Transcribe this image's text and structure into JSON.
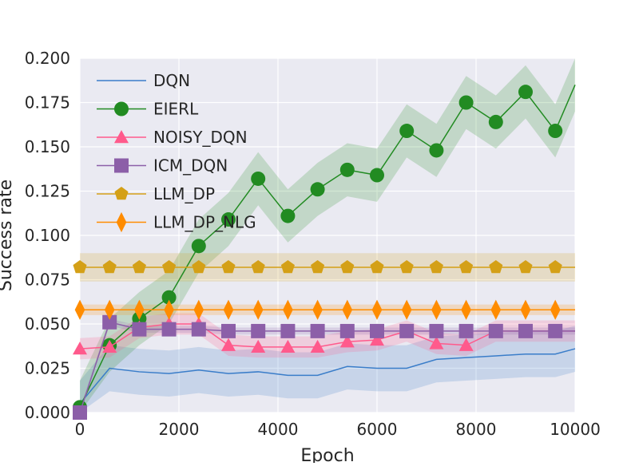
{
  "chart_data": {
    "type": "line",
    "xlabel": "Epoch",
    "ylabel": "Success rate",
    "xlim": [
      0,
      10000
    ],
    "ylim": [
      0,
      0.2
    ],
    "xticks": [
      "0",
      "2000",
      "4000",
      "6000",
      "8000",
      "10000"
    ],
    "yticks": [
      "0.000",
      "0.025",
      "0.050",
      "0.075",
      "0.100",
      "0.125",
      "0.150",
      "0.175",
      "0.200"
    ],
    "grid": true,
    "legend": "top-left",
    "x": [
      0,
      600,
      1200,
      1800,
      2400,
      3000,
      3600,
      4200,
      4800,
      5400,
      6000,
      6600,
      7200,
      7800,
      8400,
      9000,
      9600,
      10000
    ],
    "series": [
      {
        "name": "DQN",
        "color": "#3a7dc9",
        "marker": "none",
        "values": [
          0.005,
          0.025,
          0.023,
          0.022,
          0.024,
          0.022,
          0.023,
          0.021,
          0.021,
          0.026,
          0.025,
          0.025,
          0.03,
          0.031,
          0.032,
          0.033,
          0.033,
          0.036
        ],
        "band": 0.013
      },
      {
        "name": "EIERL",
        "color": "#228b22",
        "marker": "circle",
        "values": [
          0.003,
          0.038,
          0.053,
          0.065,
          0.094,
          0.109,
          0.132,
          0.111,
          0.126,
          0.137,
          0.134,
          0.159,
          0.148,
          0.175,
          0.164,
          0.181,
          0.159,
          0.185
        ],
        "band": 0.015
      },
      {
        "name": "NOISY_DQN",
        "color": "#ff5a8c",
        "marker": "triangle",
        "values": [
          0.036,
          0.037,
          0.048,
          0.05,
          0.05,
          0.038,
          0.037,
          0.037,
          0.037,
          0.04,
          0.041,
          0.046,
          0.039,
          0.038,
          0.046,
          0.046,
          0.046,
          0.046
        ],
        "band": 0.006
      },
      {
        "name": "ICM_DQN",
        "color": "#8c5fa8",
        "marker": "square",
        "values": [
          0.0,
          0.051,
          0.047,
          0.047,
          0.047,
          0.046,
          0.046,
          0.046,
          0.046,
          0.046,
          0.046,
          0.046,
          0.046,
          0.046,
          0.046,
          0.046,
          0.046,
          0.046
        ],
        "band": 0.002
      },
      {
        "name": "LLM_DP",
        "color": "#d4a017",
        "marker": "pentagon",
        "values": [
          0.082,
          0.082,
          0.082,
          0.082,
          0.082,
          0.082,
          0.082,
          0.082,
          0.082,
          0.082,
          0.082,
          0.082,
          0.082,
          0.082,
          0.082,
          0.082,
          0.082,
          0.082
        ],
        "band": 0.008
      },
      {
        "name": "LLM_DP_NLG",
        "color": "#ff8c00",
        "marker": "diamond",
        "values": [
          0.058,
          0.058,
          0.058,
          0.058,
          0.058,
          0.058,
          0.058,
          0.058,
          0.058,
          0.058,
          0.058,
          0.058,
          0.058,
          0.058,
          0.058,
          0.058,
          0.058,
          0.058
        ],
        "band": 0.003
      }
    ]
  }
}
